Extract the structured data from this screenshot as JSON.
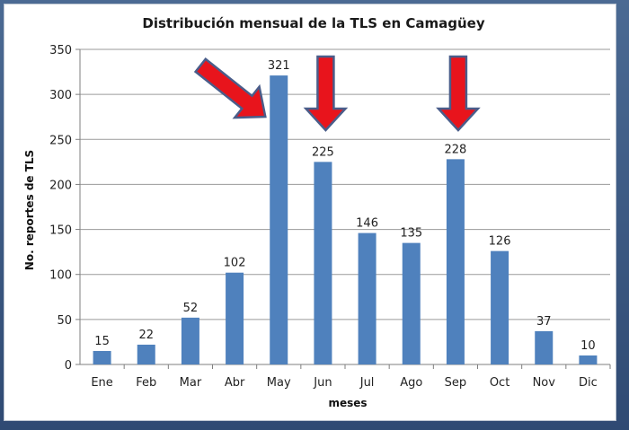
{
  "chart_data": {
    "type": "bar",
    "title": "Distribución mensual de la TLS en Camagüey",
    "xlabel": "meses",
    "ylabel": "No. reportes de TLS",
    "ylim": [
      0,
      350
    ],
    "yticks": [
      0,
      50,
      100,
      150,
      200,
      250,
      300,
      350
    ],
    "grid": true,
    "categories": [
      "Ene",
      "Feb",
      "Mar",
      "Abr",
      "May",
      "Jun",
      "Jul",
      "Ago",
      "Sep",
      "Oct",
      "Nov",
      "Dic"
    ],
    "values": [
      15,
      22,
      52,
      102,
      321,
      225,
      146,
      135,
      228,
      126,
      37,
      10
    ],
    "data_labels": [
      "15",
      "22",
      "52",
      "102",
      "321",
      "225",
      "146",
      "135",
      "228",
      "126",
      "37",
      "10"
    ],
    "bar_color": "#4f81bd",
    "annotations": [
      {
        "type": "arrow",
        "target_category": "May",
        "direction": "down-right",
        "color": "#e8141c"
      },
      {
        "type": "arrow",
        "target_category": "Jun",
        "direction": "down",
        "color": "#e8141c"
      },
      {
        "type": "arrow",
        "target_category": "Sep",
        "direction": "down",
        "color": "#e8141c"
      }
    ]
  }
}
